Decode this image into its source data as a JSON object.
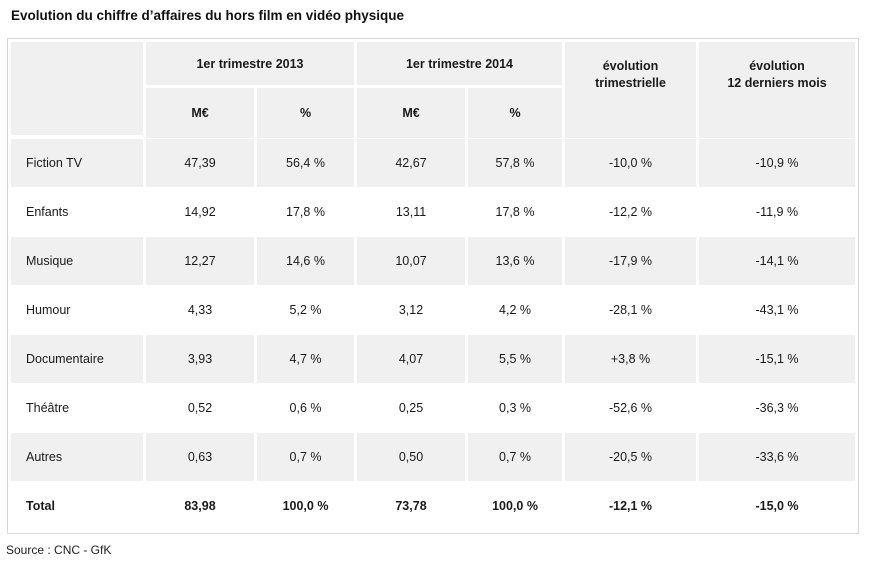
{
  "title": "Evolution du chiffre d’affaires du hors film en vidéo physique",
  "header": {
    "group_2013": "1er trimestre 2013",
    "group_2014": "1er trimestre 2014",
    "evol_trim": "évolution\ntrimestrielle",
    "evol_12": "évolution\n12 derniers mois",
    "sub_meur": "M€",
    "sub_pct": "%"
  },
  "rows": [
    {
      "label": "Fiction TV",
      "m2013": "47,39",
      "p2013": "56,4 %",
      "m2014": "42,67",
      "p2014": "57,8 %",
      "evol_trim": "-10,0 %",
      "evol_12": "-10,9 %"
    },
    {
      "label": "Enfants",
      "m2013": "14,92",
      "p2013": "17,8 %",
      "m2014": "13,11",
      "p2014": "17,8 %",
      "evol_trim": "-12,2 %",
      "evol_12": "-11,9 %"
    },
    {
      "label": "Musique",
      "m2013": "12,27",
      "p2013": "14,6 %",
      "m2014": "10,07",
      "p2014": "13,6 %",
      "evol_trim": "-17,9 %",
      "evol_12": "-14,1 %"
    },
    {
      "label": "Humour",
      "m2013": "4,33",
      "p2013": "5,2 %",
      "m2014": "3,12",
      "p2014": "4,2 %",
      "evol_trim": "-28,1 %",
      "evol_12": "-43,1 %"
    },
    {
      "label": "Documentaire",
      "m2013": "3,93",
      "p2013": "4,7 %",
      "m2014": "4,07",
      "p2014": "5,5 %",
      "evol_trim": "+3,8 %",
      "evol_12": "-15,1 %"
    },
    {
      "label": "Théâtre",
      "m2013": "0,52",
      "p2013": "0,6 %",
      "m2014": "0,25",
      "p2014": "0,3 %",
      "evol_trim": "-52,6 %",
      "evol_12": "-36,3 %"
    },
    {
      "label": "Autres",
      "m2013": "0,63",
      "p2013": "0,7 %",
      "m2014": "0,50",
      "p2014": "0,7 %",
      "evol_trim": "-20,5 %",
      "evol_12": "-33,6 %"
    },
    {
      "label": "Total",
      "m2013": "83,98",
      "p2013": "100,0 %",
      "m2014": "73,78",
      "p2014": "100,0 %",
      "evol_trim": "-12,1 %",
      "evol_12": "-15,0 %"
    }
  ],
  "source": "Source : CNC - GfK"
}
